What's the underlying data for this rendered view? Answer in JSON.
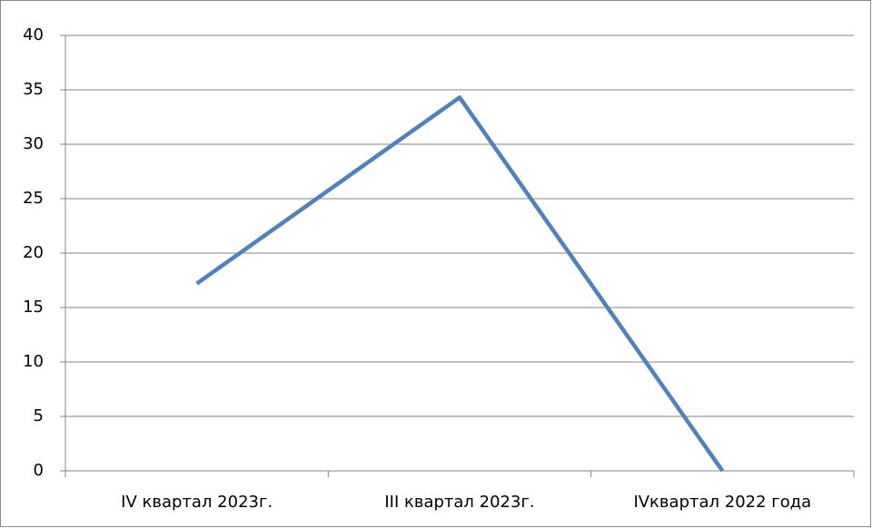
{
  "chart_data": {
    "type": "line",
    "categories": [
      "IV квартал 2023г.",
      "III квартал 2023г.",
      "IVквартал 2022 года"
    ],
    "series": [
      {
        "name": null,
        "color": "#4f81bd",
        "values": [
          17.2,
          34.3,
          0
        ]
      }
    ],
    "ylim": [
      0,
      40
    ],
    "yticks": [
      0,
      5,
      10,
      15,
      20,
      25,
      30,
      35,
      40
    ],
    "grid": true
  }
}
